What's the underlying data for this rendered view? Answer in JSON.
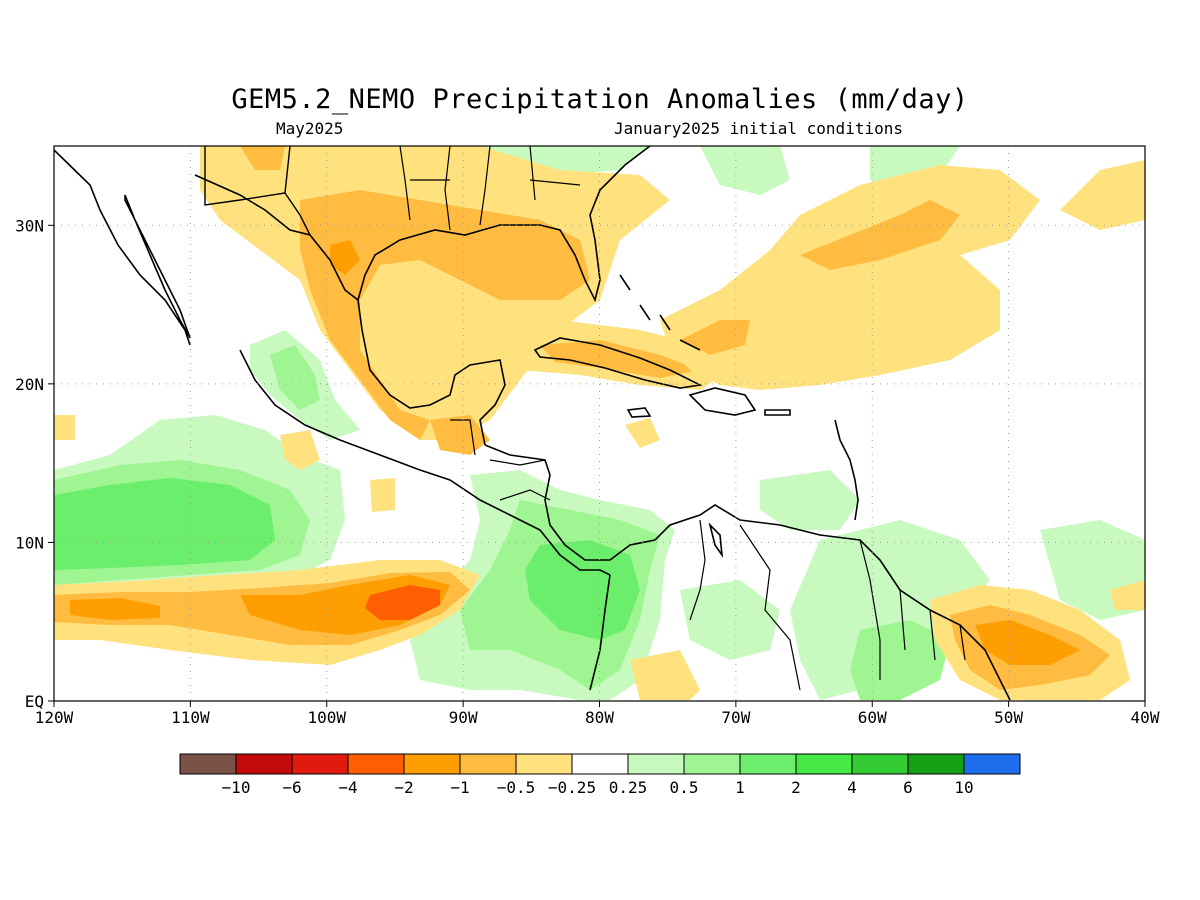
{
  "title": "GEM5.2_NEMO Precipitation Anomalies (mm/day)",
  "subtitle_left": "May2025",
  "subtitle_right": "January2025 initial conditions",
  "map": {
    "lon_range": [
      -120,
      -40
    ],
    "lat_range": [
      0,
      35
    ],
    "grid_lines": "dotted",
    "lat_ticks": [
      {
        "value": 30,
        "label": "30N"
      },
      {
        "value": 20,
        "label": "20N"
      },
      {
        "value": 10,
        "label": "10N"
      },
      {
        "value": 0,
        "label": "EQ"
      }
    ],
    "lon_ticks": [
      {
        "value": -120,
        "label": "120W"
      },
      {
        "value": -110,
        "label": "110W"
      },
      {
        "value": -100,
        "label": "100W"
      },
      {
        "value": -90,
        "label": "90W"
      },
      {
        "value": -80,
        "label": "80W"
      },
      {
        "value": -70,
        "label": "70W"
      },
      {
        "value": -60,
        "label": "60W"
      },
      {
        "value": -50,
        "label": "50W"
      },
      {
        "value": -40,
        "label": "40W"
      }
    ]
  },
  "colorbar": {
    "colors": [
      "#7a5248",
      "#c40a0a",
      "#e01a0f",
      "#ff5f00",
      "#ff9e00",
      "#ffbc40",
      "#ffe27e",
      "#ffffff",
      "#c8fac0",
      "#9ef592",
      "#6bee6b",
      "#45e845",
      "#33cc33",
      "#13a013",
      "#1f6cec"
    ],
    "labels": [
      "−10",
      "−6",
      "−4",
      "−2",
      "−1",
      "−0.5",
      "−0.25",
      "0.25",
      "0.5",
      "1",
      "2",
      "4",
      "6",
      "10"
    ]
  },
  "colors": {
    "dry_weak": "#ffe27e",
    "dry_mod": "#ffbc40",
    "dry_strong": "#ff9e00",
    "dry_vstrong": "#ff5f00",
    "wet_weak": "#c8fac0",
    "wet_mod": "#9ef592",
    "wet_strong": "#6bee6b",
    "wet_vstrong": "#45e845"
  }
}
